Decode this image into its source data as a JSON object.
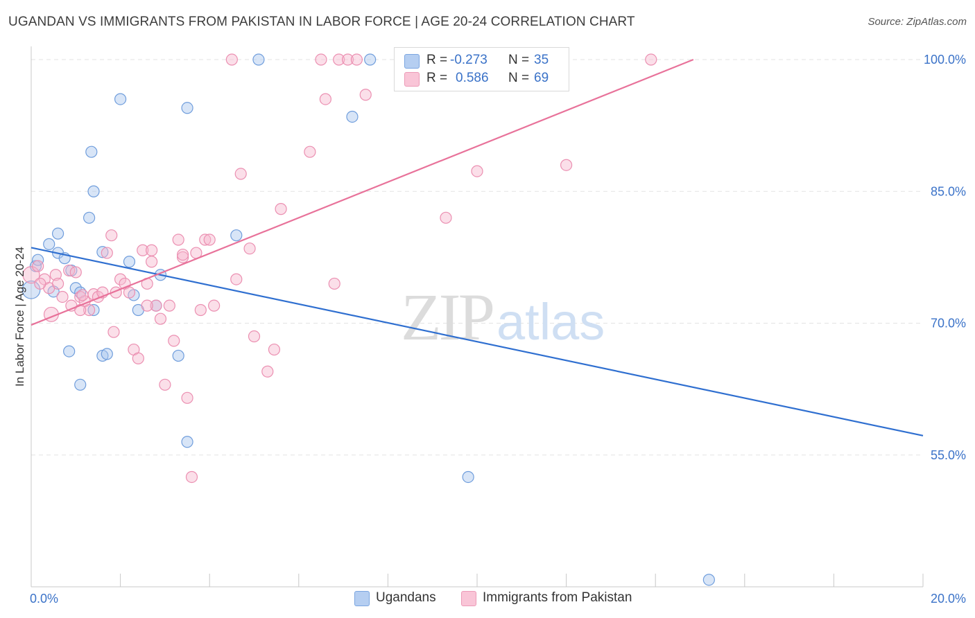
{
  "title": "UGANDAN VS IMMIGRANTS FROM PAKISTAN IN LABOR FORCE | AGE 20-24 CORRELATION CHART",
  "source": "Source: ZipAtlas.com",
  "watermark": {
    "zip": "ZIP",
    "atlas": "atlas"
  },
  "legend": {
    "rows": [
      {
        "r_label": "R =",
        "r_value": "-0.273",
        "n_label": "N =",
        "n_value": "35"
      },
      {
        "r_label": "R =",
        "r_value": "0.586",
        "n_label": "N =",
        "n_value": "69"
      }
    ]
  },
  "bottom_legend": [
    "Ugandans",
    "Immigrants from Pakistan"
  ],
  "colors": {
    "blue_fill": "#a9c6ee",
    "blue_stroke": "#6f9ddc",
    "blue_line": "#2f6fd0",
    "pink_fill": "#f7b9cf",
    "pink_stroke": "#eb8fb1",
    "pink_line": "#e8729a",
    "tick_text": "#3a72c8",
    "grid": "#e3e3e3"
  },
  "chart_data": {
    "type": "scatter",
    "title": "UGANDAN VS IMMIGRANTS FROM PAKISTAN IN LABOR FORCE | AGE 20-24 CORRELATION CHART",
    "xlabel": "",
    "ylabel": "In Labor Force | Age 20-24",
    "xlim": [
      0,
      20
    ],
    "ylim": [
      40,
      101.5
    ],
    "x_tick_labels": [
      {
        "x": 0,
        "label": "0.0%"
      },
      {
        "x": 20,
        "label": "20.0%"
      }
    ],
    "y_tick_labels": [
      {
        "y": 55,
        "label": "55.0%"
      },
      {
        "y": 70,
        "label": "70.0%"
      },
      {
        "y": 85,
        "label": "85.0%"
      },
      {
        "y": 100,
        "label": "100.0%"
      }
    ],
    "y_gridlines": [
      55,
      70,
      85,
      100
    ],
    "grid": true,
    "legend_position": "top-center",
    "series": [
      {
        "name": "Ugandans",
        "color": "blue",
        "trend": {
          "x": [
            0,
            20
          ],
          "y": [
            78.6,
            57.2
          ]
        },
        "points": [
          [
            0.0,
            73.8,
            1.6
          ],
          [
            0.1,
            76.5,
            1
          ],
          [
            0.15,
            77.2,
            1
          ],
          [
            0.4,
            79.0,
            1
          ],
          [
            0.6,
            78.0,
            1
          ],
          [
            0.6,
            80.2,
            1
          ],
          [
            0.5,
            73.6,
            1
          ],
          [
            0.75,
            77.4,
            1
          ],
          [
            0.9,
            76.0,
            1
          ],
          [
            1.0,
            74.0,
            1
          ],
          [
            1.1,
            73.5,
            1
          ],
          [
            1.3,
            82.0,
            1
          ],
          [
            1.35,
            89.5,
            1
          ],
          [
            1.4,
            85.0,
            1
          ],
          [
            1.6,
            78.1,
            1
          ],
          [
            2.0,
            95.5,
            1
          ],
          [
            2.3,
            73.2,
            1
          ],
          [
            2.4,
            71.5,
            1
          ],
          [
            2.9,
            75.5,
            1
          ],
          [
            2.8,
            72.0,
            1
          ],
          [
            3.3,
            66.3,
            1
          ],
          [
            3.5,
            94.5,
            1
          ],
          [
            3.5,
            56.5,
            1
          ],
          [
            4.6,
            80.0,
            1
          ],
          [
            5.1,
            100.0,
            1
          ],
          [
            7.2,
            93.5,
            1
          ],
          [
            7.6,
            100.0,
            1
          ],
          [
            0.85,
            66.8,
            1
          ],
          [
            1.1,
            63.0,
            1
          ],
          [
            1.6,
            66.3,
            1
          ],
          [
            1.7,
            66.5,
            1
          ],
          [
            9.8,
            52.5,
            1
          ],
          [
            15.2,
            40.8,
            1
          ],
          [
            1.4,
            71.5,
            1
          ],
          [
            2.2,
            77.0,
            1
          ]
        ]
      },
      {
        "name": "Immigrants from Pakistan",
        "color": "pink",
        "trend": {
          "x": [
            0,
            14.85
          ],
          "y": [
            69.8,
            100.0
          ]
        },
        "points": [
          [
            0.0,
            75.5,
            1.5
          ],
          [
            0.15,
            76.5,
            1
          ],
          [
            0.3,
            75.0,
            1
          ],
          [
            0.4,
            74.0,
            1
          ],
          [
            0.45,
            71.0,
            1.3
          ],
          [
            0.55,
            75.5,
            1
          ],
          [
            0.7,
            73.0,
            1
          ],
          [
            0.85,
            76.0,
            1
          ],
          [
            0.9,
            72.0,
            1
          ],
          [
            1.0,
            75.8,
            1
          ],
          [
            1.1,
            73.0,
            1
          ],
          [
            1.2,
            72.5,
            1
          ],
          [
            1.3,
            71.5,
            1
          ],
          [
            1.4,
            73.3,
            1
          ],
          [
            1.5,
            73.0,
            1
          ],
          [
            1.6,
            73.5,
            1
          ],
          [
            1.7,
            78.0,
            1
          ],
          [
            1.8,
            80.0,
            1
          ],
          [
            1.85,
            69.0,
            1
          ],
          [
            1.9,
            73.5,
            1
          ],
          [
            2.0,
            75.0,
            1
          ],
          [
            2.1,
            74.5,
            1
          ],
          [
            2.2,
            73.5,
            1
          ],
          [
            2.3,
            67.0,
            1
          ],
          [
            2.4,
            66.0,
            1
          ],
          [
            2.5,
            78.3,
            1
          ],
          [
            2.6,
            74.5,
            1
          ],
          [
            2.7,
            77.0,
            1
          ],
          [
            2.8,
            72.0,
            1
          ],
          [
            2.9,
            70.5,
            1
          ],
          [
            3.0,
            63.0,
            1
          ],
          [
            3.1,
            72.0,
            1
          ],
          [
            3.2,
            68.0,
            1
          ],
          [
            3.3,
            79.5,
            1
          ],
          [
            3.4,
            77.5,
            1
          ],
          [
            3.5,
            61.5,
            1
          ],
          [
            3.6,
            52.5,
            1
          ],
          [
            3.7,
            78.0,
            1
          ],
          [
            3.8,
            71.5,
            1
          ],
          [
            3.9,
            79.5,
            1
          ],
          [
            4.0,
            79.5,
            1
          ],
          [
            4.1,
            72.0,
            1
          ],
          [
            4.6,
            75.0,
            1
          ],
          [
            4.7,
            87.0,
            1
          ],
          [
            4.9,
            78.5,
            1
          ],
          [
            5.0,
            68.5,
            1
          ],
          [
            5.3,
            64.5,
            1
          ],
          [
            5.45,
            67.0,
            1
          ],
          [
            5.6,
            83.0,
            1
          ],
          [
            6.25,
            89.5,
            1
          ],
          [
            6.5,
            100.0,
            1
          ],
          [
            6.6,
            95.5,
            1
          ],
          [
            6.9,
            100.0,
            1
          ],
          [
            7.1,
            100.0,
            1
          ],
          [
            7.3,
            100.0,
            1
          ],
          [
            7.5,
            96.0,
            1
          ],
          [
            6.8,
            74.5,
            1
          ],
          [
            4.5,
            100.0,
            1
          ],
          [
            9.3,
            82.0,
            1
          ],
          [
            10.0,
            87.3,
            1
          ],
          [
            12.0,
            88.0,
            1
          ],
          [
            13.9,
            100.0,
            1
          ],
          [
            0.2,
            74.5,
            1
          ],
          [
            1.1,
            71.5,
            1
          ],
          [
            2.6,
            72.0,
            1
          ],
          [
            3.4,
            77.8,
            1
          ],
          [
            2.7,
            78.3,
            1
          ],
          [
            0.6,
            74.5,
            1
          ],
          [
            1.15,
            73.2,
            1
          ]
        ]
      }
    ]
  }
}
